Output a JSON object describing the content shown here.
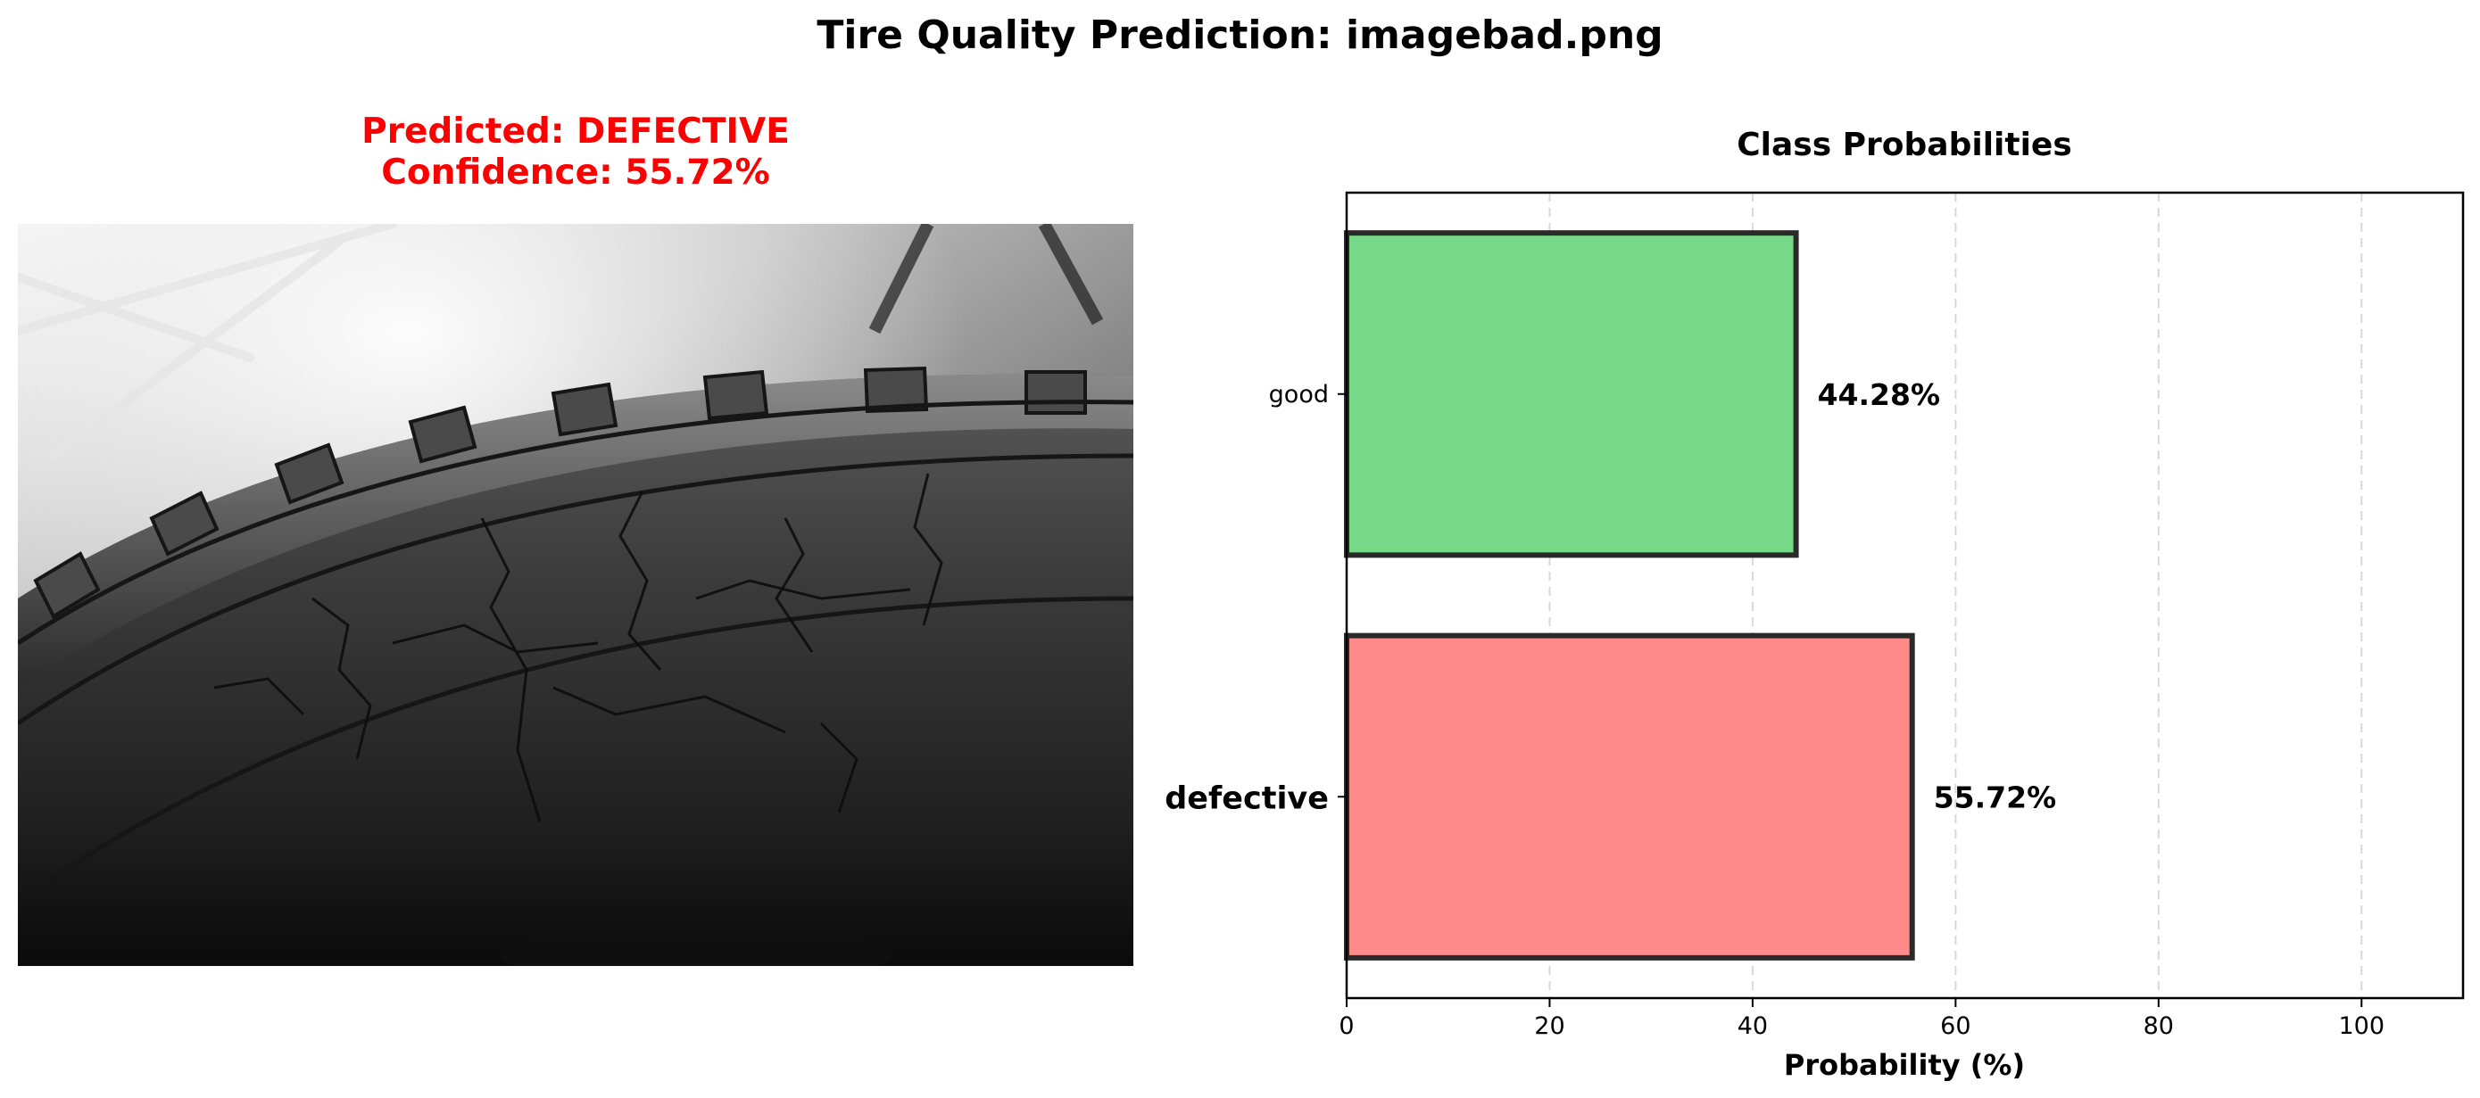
{
  "suptitle": "Tire Quality Prediction: imagebad.png",
  "prediction": {
    "title_line1": "Predicted: DEFECTIVE",
    "title_line2": "Confidence: 55.72%",
    "title_color": "#ff0000",
    "image_kind": "grayscale-tire-photo"
  },
  "chart_data": {
    "type": "bar",
    "orientation": "horizontal",
    "title": "Class Probabilities",
    "xlabel": "Probability (%)",
    "ylabel": "",
    "xlim": [
      0,
      110
    ],
    "xticks": [
      0,
      20,
      40,
      60,
      80,
      100
    ],
    "categories": [
      "defective",
      "good"
    ],
    "values": [
      55.72,
      44.28
    ],
    "value_labels": [
      "55.72%",
      "44.28%"
    ],
    "colors": [
      "#ff8a8a",
      "#77d987"
    ],
    "edge_color": "#2a2a2a",
    "highlighted_category": "defective",
    "grid": "x-dashed"
  }
}
